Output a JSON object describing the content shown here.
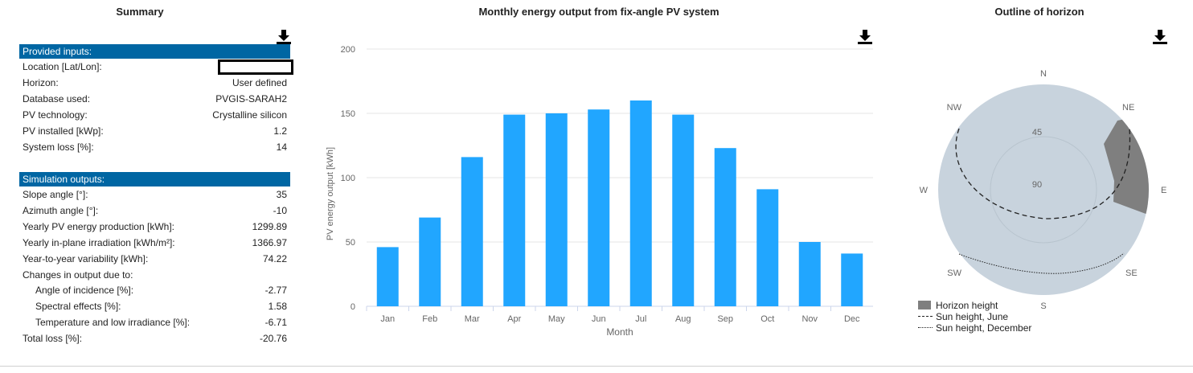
{
  "summary": {
    "title": "Summary",
    "inputs_header": "Provided inputs:",
    "inputs": [
      {
        "label": "Location [Lat/Lon]:",
        "value": ""
      },
      {
        "label": "Horizon:",
        "value": "User defined"
      },
      {
        "label": "Database used:",
        "value": "PVGIS-SARAH2"
      },
      {
        "label": "PV technology:",
        "value": "Crystalline silicon"
      },
      {
        "label": "PV installed [kWp]:",
        "value": "1.2"
      },
      {
        "label": "System loss [%]:",
        "value": "14"
      }
    ],
    "outputs_header": "Simulation outputs:",
    "outputs": [
      {
        "label": "Slope angle [°]:",
        "value": "35"
      },
      {
        "label": "Azimuth angle [°]:",
        "value": "-10"
      },
      {
        "label": "Yearly PV energy production [kWh]:",
        "value": "1299.89"
      },
      {
        "label": "Yearly in-plane irradiation [kWh/m²]:",
        "value": "1366.97"
      },
      {
        "label": "Year-to-year variability [kWh]:",
        "value": "74.22"
      },
      {
        "label": "Changes in output due to:",
        "value": ""
      },
      {
        "label": "Angle of incidence [%]:",
        "value": "-2.77",
        "indent": true
      },
      {
        "label": "Spectral effects [%]:",
        "value": "1.58",
        "indent": true
      },
      {
        "label": "Temperature and low irradiance [%]:",
        "value": "-6.71",
        "indent": true
      },
      {
        "label": "Total loss [%]:",
        "value": "-20.76"
      }
    ]
  },
  "chart_data": [
    {
      "type": "bar",
      "title": "Monthly energy output from fix-angle PV system",
      "xlabel": "Month",
      "ylabel": "PV energy output [kWh]",
      "categories": [
        "Jan",
        "Feb",
        "Mar",
        "Apr",
        "May",
        "Jun",
        "Jul",
        "Aug",
        "Sep",
        "Oct",
        "Nov",
        "Dec"
      ],
      "values": [
        46,
        69,
        116,
        149,
        150,
        153,
        160,
        149,
        123,
        91,
        50,
        41
      ],
      "ylim": [
        0,
        200
      ],
      "yticks": [
        0,
        50,
        100,
        150,
        200
      ],
      "grid": true,
      "color": "#21a6ff"
    },
    {
      "type": "polar",
      "title": "Outline of horizon",
      "directions": [
        "N",
        "NE",
        "E",
        "SE",
        "S",
        "SW",
        "W",
        "NW"
      ],
      "radial_ticks": [
        "45",
        "90"
      ],
      "legend": [
        "Horizon height",
        "Sun height, June",
        "Sun height, December"
      ],
      "legend_position": "bottom-left",
      "colors": {
        "sky": "#c8d3dd",
        "horizon": "#7f7f7f"
      }
    }
  ],
  "icons": {
    "download": "download-icon"
  }
}
